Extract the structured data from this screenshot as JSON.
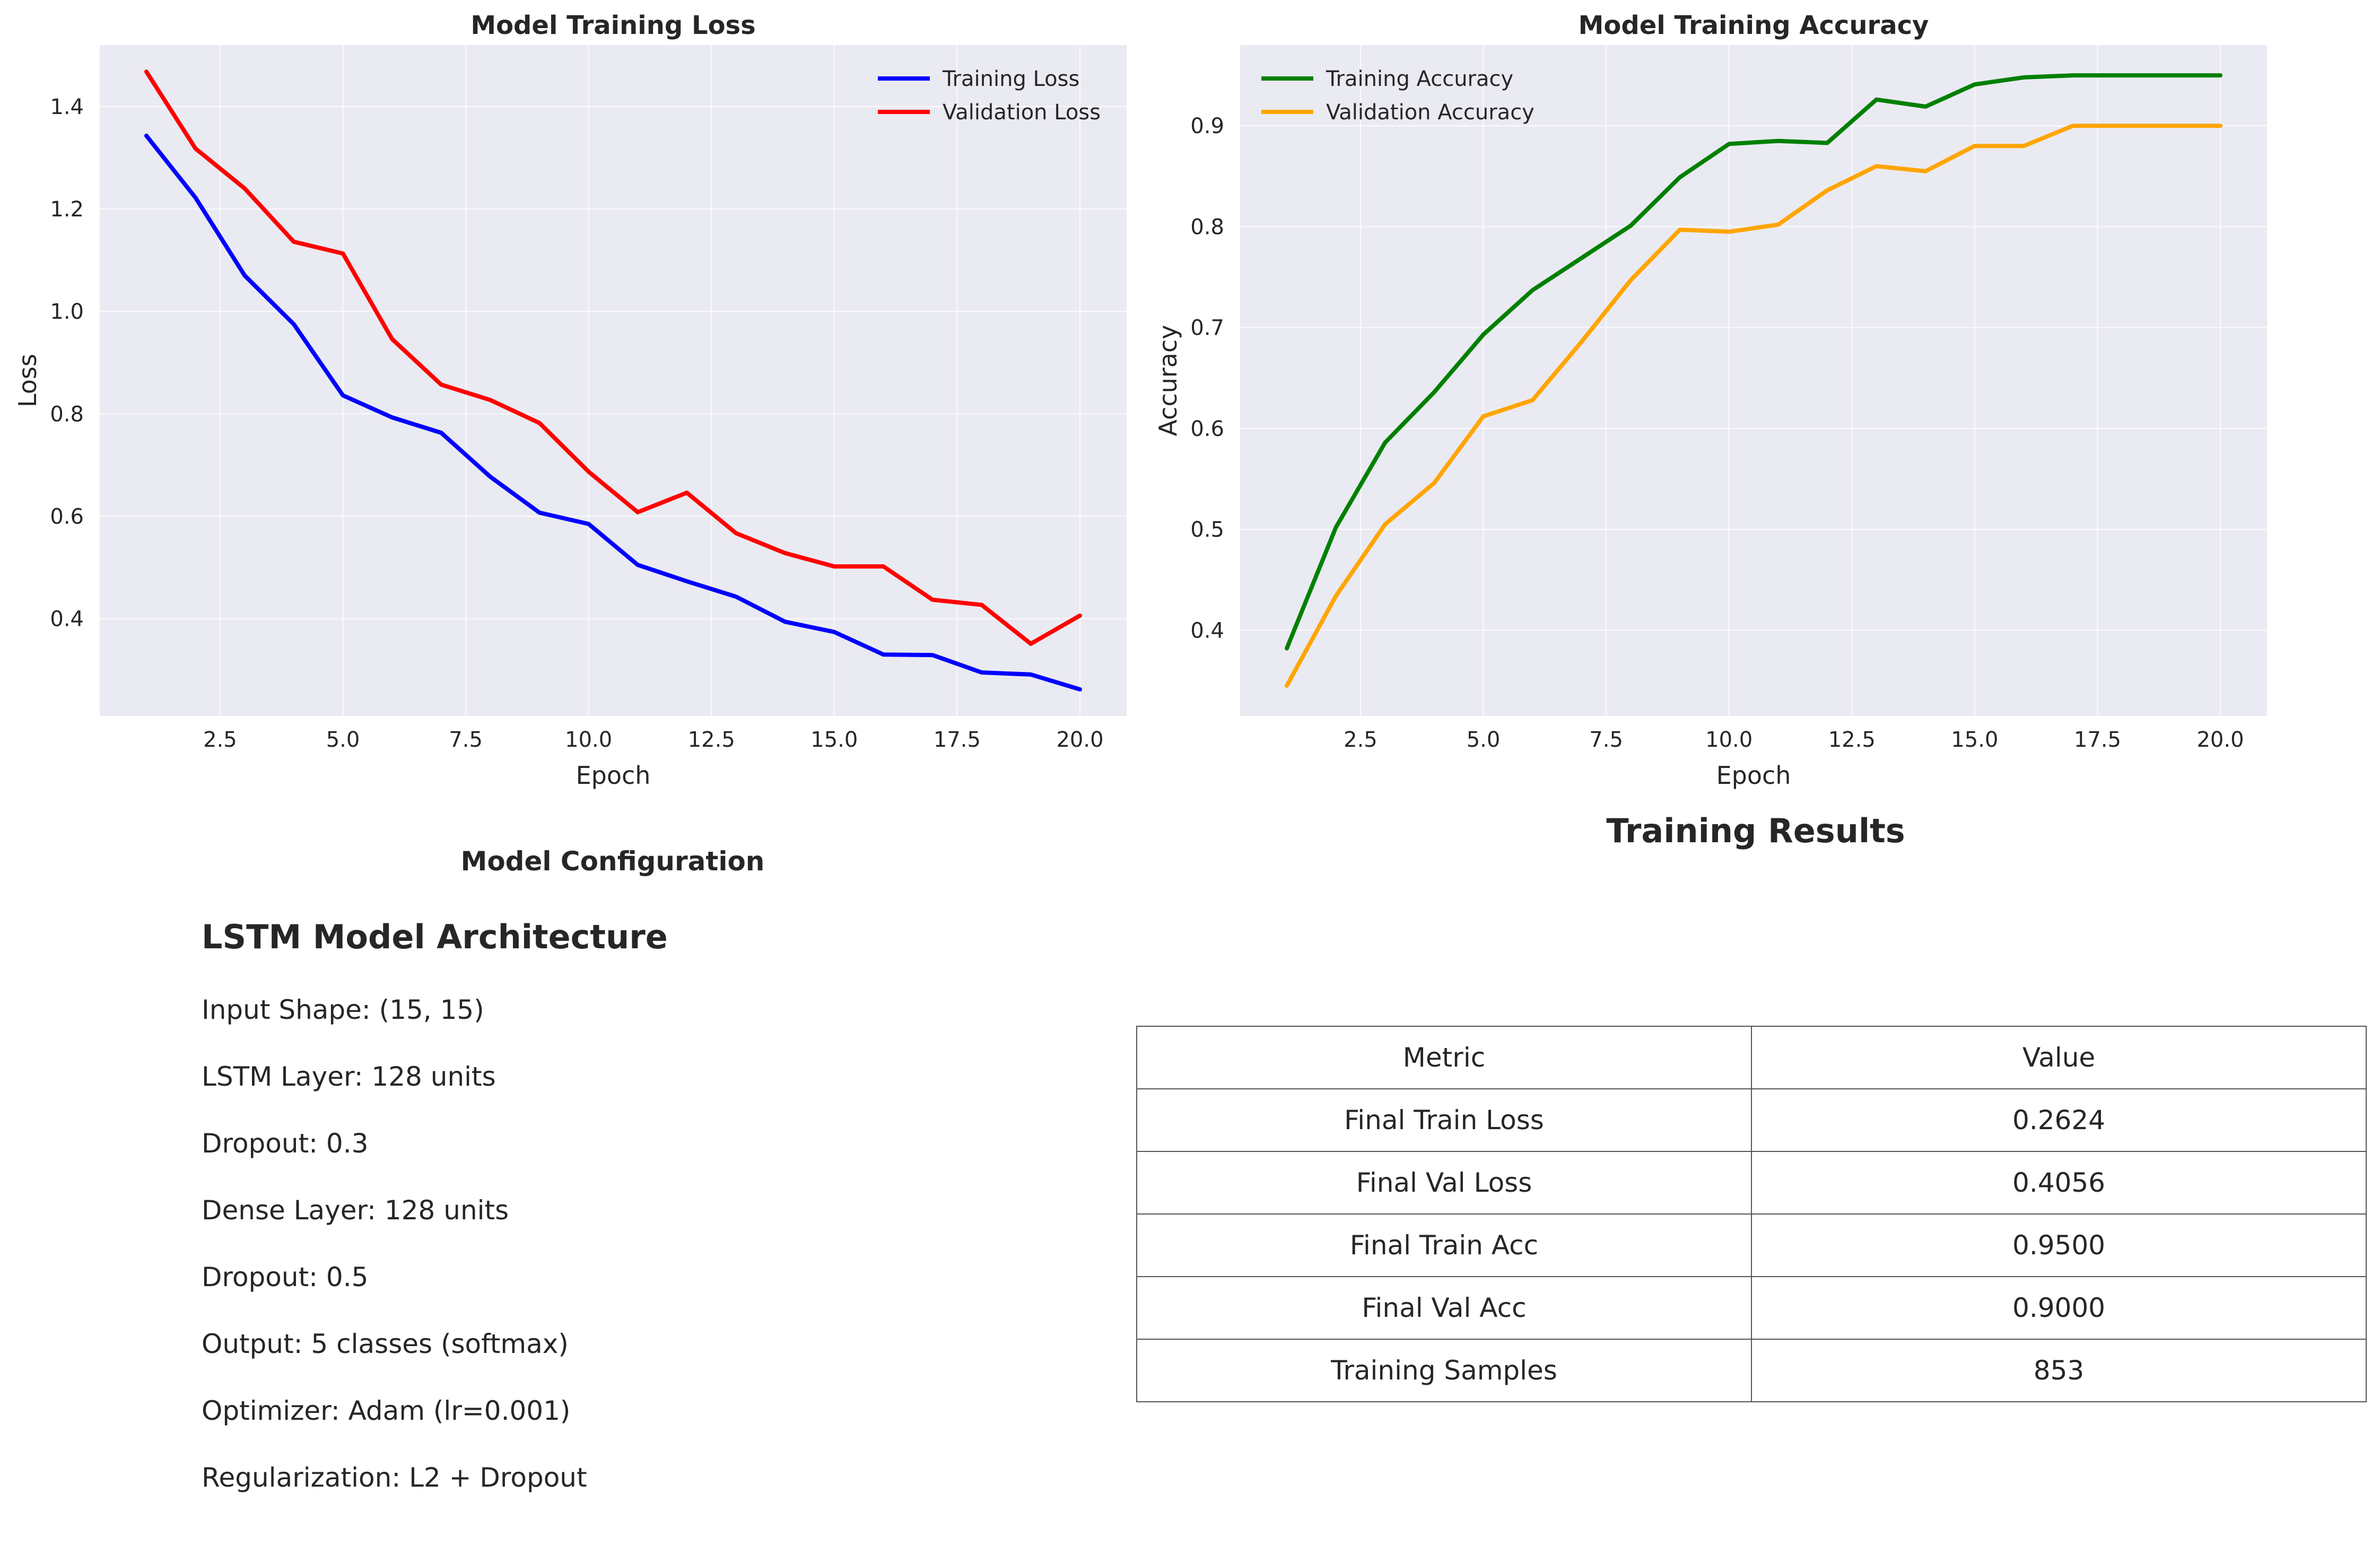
{
  "chart_data": [
    {
      "type": "line",
      "title": "Model Training Loss",
      "xlabel": "Epoch",
      "ylabel": "Loss",
      "xlim": [
        0.05,
        20.95
      ],
      "ylim": [
        0.21,
        1.52
      ],
      "xticks": [
        2.5,
        5.0,
        7.5,
        10.0,
        12.5,
        15.0,
        17.5,
        20.0
      ],
      "xtick_labels": [
        "2.5",
        "5.0",
        "7.5",
        "10.0",
        "12.5",
        "15.0",
        "17.5",
        "20.0"
      ],
      "yticks": [
        0.4,
        0.6,
        0.8,
        1.0,
        1.2,
        1.4
      ],
      "ytick_labels": [
        "0.4",
        "0.6",
        "0.8",
        "1.0",
        "1.2",
        "1.4"
      ],
      "grid": true,
      "legend_position": "top-right",
      "x": [
        1,
        2,
        3,
        4,
        5,
        6,
        7,
        8,
        9,
        10,
        11,
        12,
        13,
        14,
        15,
        16,
        17,
        18,
        19,
        20
      ],
      "series": [
        {
          "name": "Training Loss",
          "color": "#0000ff",
          "values": [
            1.343,
            1.222,
            1.07,
            0.975,
            0.836,
            0.793,
            0.763,
            0.677,
            0.607,
            0.585,
            0.505,
            0.473,
            0.443,
            0.394,
            0.374,
            0.33,
            0.329,
            0.295,
            0.291,
            0.262
          ]
        },
        {
          "name": "Validation Loss",
          "color": "#ff0000",
          "values": [
            1.468,
            1.318,
            1.24,
            1.136,
            1.113,
            0.946,
            0.857,
            0.827,
            0.782,
            0.687,
            0.608,
            0.646,
            0.567,
            0.528,
            0.502,
            0.502,
            0.437,
            0.427,
            0.351,
            0.406
          ]
        }
      ]
    },
    {
      "type": "line",
      "title": "Model Training Accuracy",
      "xlabel": "Epoch",
      "ylabel": "Accuracy",
      "xlim": [
        0.05,
        20.95
      ],
      "ylim": [
        0.315,
        0.98
      ],
      "xticks": [
        2.5,
        5.0,
        7.5,
        10.0,
        12.5,
        15.0,
        17.5,
        20.0
      ],
      "xtick_labels": [
        "2.5",
        "5.0",
        "7.5",
        "10.0",
        "12.5",
        "15.0",
        "17.5",
        "20.0"
      ],
      "yticks": [
        0.4,
        0.5,
        0.6,
        0.7,
        0.8,
        0.9
      ],
      "ytick_labels": [
        "0.4",
        "0.5",
        "0.6",
        "0.7",
        "0.8",
        "0.9"
      ],
      "grid": true,
      "legend_position": "top-left",
      "x": [
        1,
        2,
        3,
        4,
        5,
        6,
        7,
        8,
        9,
        10,
        11,
        12,
        13,
        14,
        15,
        16,
        17,
        18,
        19,
        20
      ],
      "series": [
        {
          "name": "Training Accuracy",
          "color": "#008000",
          "values": [
            0.382,
            0.502,
            0.586,
            0.636,
            0.693,
            0.737,
            0.769,
            0.801,
            0.849,
            0.882,
            0.885,
            0.883,
            0.926,
            0.919,
            0.941,
            0.948,
            0.95,
            0.95,
            0.95,
            0.95
          ]
        },
        {
          "name": "Validation Accuracy",
          "color": "#ffa500",
          "values": [
            0.345,
            0.434,
            0.505,
            0.546,
            0.612,
            0.628,
            0.686,
            0.747,
            0.797,
            0.795,
            0.802,
            0.836,
            0.86,
            0.855,
            0.88,
            0.88,
            0.9,
            0.9,
            0.9,
            0.9
          ]
        }
      ]
    }
  ],
  "config": {
    "title": "Model Configuration",
    "architecture_title": "LSTM Model Architecture",
    "lines": [
      "Input Shape: (15, 15)",
      "LSTM Layer: 128 units",
      "Dropout: 0.3",
      "Dense Layer: 128 units",
      "Dropout: 0.5",
      "Output: 5 classes (softmax)",
      "Optimizer: Adam (lr=0.001)",
      "Regularization: L2 + Dropout"
    ]
  },
  "results": {
    "title": "Training Results",
    "headers": [
      "Metric",
      "Value"
    ],
    "rows": [
      [
        "Final Train Loss",
        "0.2624"
      ],
      [
        "Final Val Loss",
        "0.4056"
      ],
      [
        "Final Train Acc",
        "0.9500"
      ],
      [
        "Final Val Acc",
        "0.9000"
      ],
      [
        "Training Samples",
        "853"
      ]
    ]
  }
}
